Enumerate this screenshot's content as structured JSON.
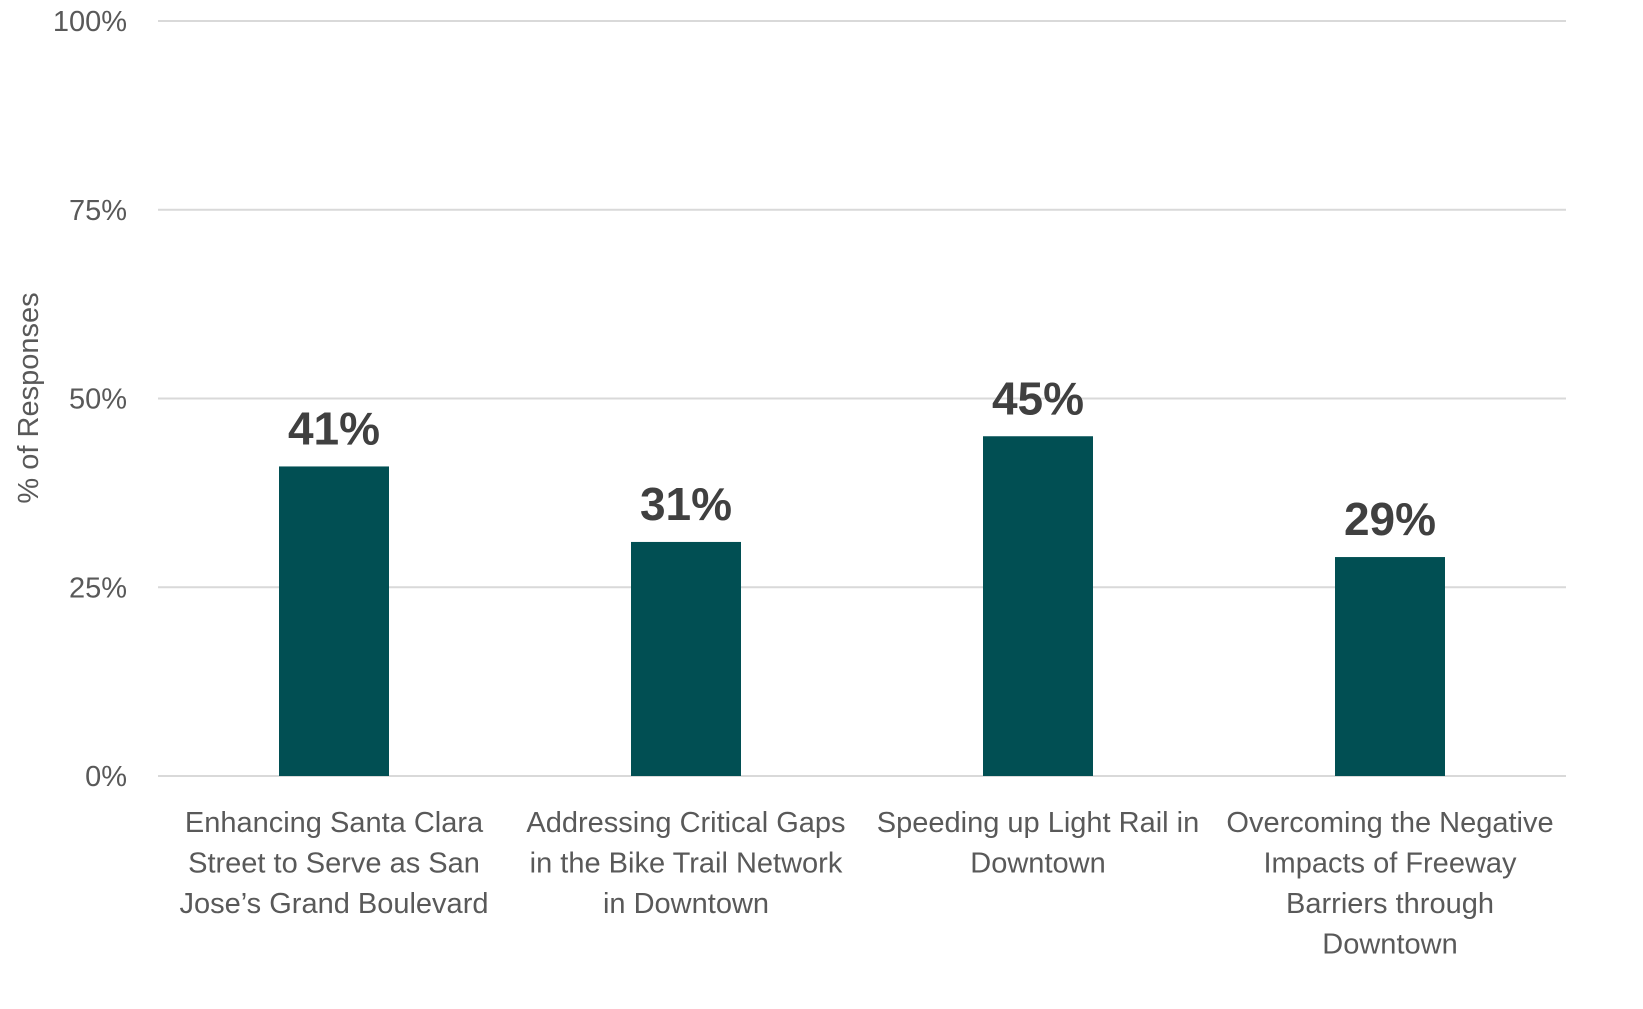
{
  "chart_data": {
    "type": "bar",
    "categories": [
      [
        "Enhancing Santa Clara",
        "Street to Serve as San",
        "Jose’s Grand Boulevard"
      ],
      [
        "Addressing Critical Gaps",
        "in the Bike Trail Network",
        "in Downtown"
      ],
      [
        "Speeding up Light Rail in",
        "Downtown"
      ],
      [
        "Overcoming the Negative",
        "Impacts of Freeway",
        "Barriers through",
        "Downtown"
      ]
    ],
    "values": [
      41,
      31,
      45,
      29
    ],
    "data_labels": [
      "41%",
      "31%",
      "45%",
      "29%"
    ],
    "ylabel": "% of Responses",
    "ylim": [
      0,
      100
    ],
    "yticks": [
      0,
      25,
      50,
      75,
      100
    ],
    "ytick_labels": [
      "0%",
      "25%",
      "50%",
      "75%",
      "100%"
    ],
    "grid": true,
    "legend": "none",
    "colors": {
      "bar": "#014f53",
      "data_label": "#404040",
      "gridline": "#d9d9d9",
      "text": "#595959"
    }
  }
}
